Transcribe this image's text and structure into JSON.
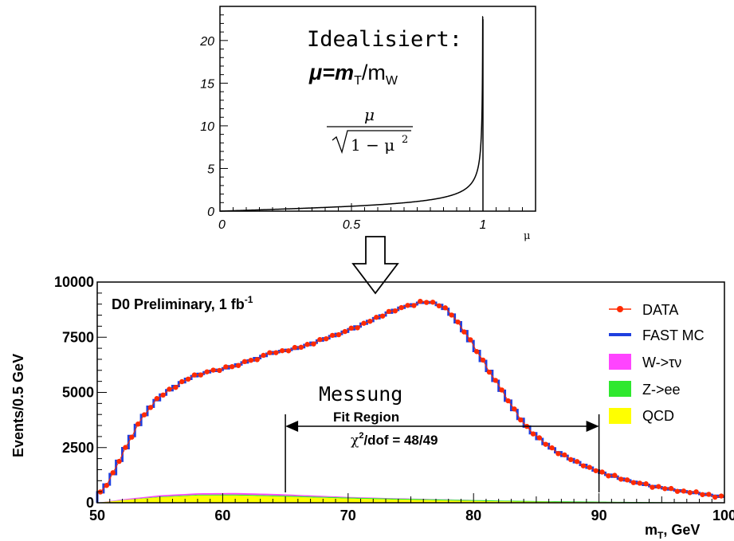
{
  "chart_data": [
    {
      "type": "line",
      "title": "",
      "annotation_lines": [
        "Idealisiert:",
        "μ=m",
        "T",
        "/m",
        "W"
      ],
      "formula": {
        "numerator": "μ",
        "denominator": "√1 − μ²",
        "sqrt_body": "1 − μ",
        "exp": "2"
      },
      "xlabel": "μ",
      "ylabel": "",
      "xlim": [
        0,
        1.2
      ],
      "ylim": [
        0,
        24
      ],
      "x_ticks": [
        "0",
        "0.5",
        "1"
      ],
      "x_tick_values": [
        0,
        0.5,
        1
      ],
      "y_ticks": [
        "0",
        "5",
        "10",
        "15",
        "20"
      ],
      "y_tick_values": [
        0,
        5,
        10,
        15,
        20
      ],
      "function": "mu/sqrt(1-mu^2)",
      "series": [
        {
          "x_start": 0,
          "x_end": 0.9995,
          "asymptote": 1
        }
      ]
    },
    {
      "type": "line",
      "title": "D0 Preliminary, 1 fb",
      "title_sup": "-1",
      "xlabel_main": "m",
      "xlabel_sub": "T",
      "xlabel_tail": ", GeV",
      "ylabel": "Events/0.5 GeV",
      "xlim": [
        50,
        100
      ],
      "ylim": [
        0,
        10000
      ],
      "x_ticks": [
        "50",
        "60",
        "70",
        "80",
        "90",
        "100"
      ],
      "x_tick_values": [
        50,
        60,
        70,
        80,
        90,
        100
      ],
      "y_ticks": [
        "0",
        "2500",
        "5000",
        "7500",
        "10000"
      ],
      "y_tick_values": [
        0,
        2500,
        5000,
        7500,
        10000
      ],
      "annotation": "Messung",
      "fit_region": {
        "label": "Fit Region",
        "chi2_label": "χ²/dof = 48/49",
        "chi2_main": "χ",
        "chi2_sup": "2",
        "chi2_tail": "/dof = 48/49",
        "x_start": 65,
        "x_end": 90
      },
      "legend": [
        {
          "name": "DATA",
          "color": "#ff2a00"
        },
        {
          "name": "FAST MC",
          "color": "#1f3fdf"
        },
        {
          "name": "W->τν",
          "color": "#ff44ff"
        },
        {
          "name": "Z->ee",
          "color": "#2ee82e"
        },
        {
          "name": "QCD",
          "color": "#ffff00"
        }
      ],
      "fast_mc_keypoints": [
        [
          50,
          300
        ],
        [
          51,
          1000
        ],
        [
          52,
          2200
        ],
        [
          53,
          3300
        ],
        [
          54,
          4200
        ],
        [
          55,
          4800
        ],
        [
          56,
          5200
        ],
        [
          57,
          5550
        ],
        [
          58,
          5800
        ],
        [
          59,
          5950
        ],
        [
          60,
          6050
        ],
        [
          62,
          6400
        ],
        [
          64,
          6800
        ],
        [
          66,
          7000
        ],
        [
          68,
          7400
        ],
        [
          70,
          7800
        ],
        [
          72,
          8300
        ],
        [
          74,
          8800
        ],
        [
          76,
          9100
        ],
        [
          77,
          9050
        ],
        [
          78,
          8700
        ],
        [
          79,
          8000
        ],
        [
          80,
          7100
        ],
        [
          81,
          6200
        ],
        [
          82,
          5300
        ],
        [
          83,
          4400
        ],
        [
          84,
          3600
        ],
        [
          85,
          3000
        ],
        [
          86,
          2550
        ],
        [
          87,
          2200
        ],
        [
          88,
          1900
        ],
        [
          89,
          1650
        ],
        [
          90,
          1400
        ],
        [
          92,
          1050
        ],
        [
          94,
          780
        ],
        [
          96,
          580
        ],
        [
          98,
          420
        ],
        [
          100,
          250
        ]
      ],
      "w_tau_keypoints": [
        [
          50,
          0
        ],
        [
          52,
          150
        ],
        [
          55,
          330
        ],
        [
          58,
          420
        ],
        [
          61,
          430
        ],
        [
          64,
          390
        ],
        [
          67,
          320
        ],
        [
          70,
          250
        ],
        [
          74,
          190
        ],
        [
          78,
          140
        ],
        [
          82,
          90
        ],
        [
          86,
          55
        ],
        [
          90,
          35
        ],
        [
          95,
          15
        ],
        [
          100,
          5
        ]
      ],
      "qcd_keypoints": [
        [
          50,
          0
        ],
        [
          52,
          110
        ],
        [
          55,
          250
        ],
        [
          58,
          330
        ],
        [
          61,
          330
        ],
        [
          64,
          290
        ],
        [
          67,
          240
        ],
        [
          70,
          190
        ],
        [
          74,
          140
        ],
        [
          78,
          100
        ],
        [
          82,
          65
        ],
        [
          86,
          40
        ],
        [
          90,
          25
        ],
        [
          95,
          10
        ],
        [
          100,
          3
        ]
      ],
      "z_ee_keypoints": [
        [
          50,
          0
        ],
        [
          55,
          25
        ],
        [
          60,
          40
        ],
        [
          65,
          45
        ],
        [
          70,
          45
        ],
        [
          75,
          45
        ],
        [
          80,
          40
        ],
        [
          85,
          30
        ],
        [
          90,
          25
        ],
        [
          95,
          15
        ],
        [
          100,
          8
        ]
      ],
      "data_jitter": [
        15,
        -40,
        60,
        -25,
        30,
        -55,
        40,
        10,
        -35,
        70,
        -20,
        45,
        -60,
        25,
        -10,
        55,
        -45,
        20,
        35,
        -30,
        65,
        -15,
        -50,
        40,
        5,
        -65,
        30,
        50,
        -25,
        15,
        -40,
        60,
        -5,
        25,
        -55,
        45,
        -20,
        35,
        -35,
        10,
        50,
        -60,
        20,
        -15,
        40,
        -30,
        55,
        -45,
        5,
        30,
        -50,
        65,
        -10,
        25,
        -40,
        45,
        -20,
        15,
        -35,
        60,
        -25,
        40,
        -55,
        20,
        35,
        -5,
        50,
        -45,
        10,
        -30,
        55,
        -15,
        25,
        -60,
        45,
        -20,
        30,
        -40,
        15,
        -10,
        35,
        -50,
        60,
        -25,
        20,
        -35,
        5,
        45,
        -55,
        30,
        -15,
        40,
        -45,
        10,
        -20,
        55,
        -30,
        25,
        -60,
        35
      ]
    }
  ]
}
